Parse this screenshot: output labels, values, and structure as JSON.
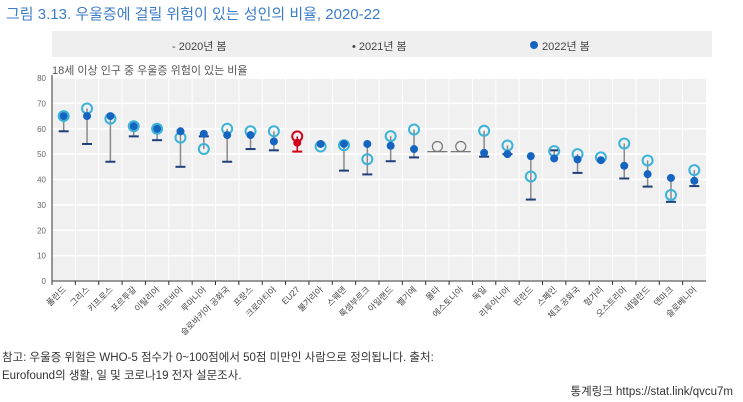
{
  "title": "그림 3.13. 우울증에 걸릴 위험이 있는 성인의 비율, 2020-22",
  "legend": {
    "s2020": "- 2020년 봄",
    "s2021": "• 2021년 봄",
    "s2022": "2022년 봄"
  },
  "note": "참고: 우울증 위험은 WHO-5 점수가 0~100점에서 50점 미만인 사람으로 정의됩니다. 출처: Eurofound의 생활, 일 및 코로나19 전자 설문조사.",
  "link": "통계링크 https://stat.link/qvcu7m",
  "colors": {
    "dot": "#1565c0",
    "circle": "#3bb3d8",
    "dash": "#1f3f7a",
    "stem": "#8a8a8a",
    "highlight": "#d0021b"
  },
  "chart_data": {
    "type": "scatter",
    "title": "그림 3.13. 우울증에 걸릴 위험이 있는 성인의 비율, 2020-22",
    "ylabel": "18세 이상 인구 중 우울증 위험이 있는 비율",
    "ylim": [
      0,
      80
    ],
    "yticks": [
      0,
      10,
      20,
      30,
      40,
      50,
      60,
      70,
      80
    ],
    "grid": true,
    "legend_position": "top",
    "highlight": "EU27",
    "categories": [
      "폴란드",
      "그리스",
      "키프로스",
      "포르투갈",
      "이탈리아",
      "라트비아",
      "루마니아",
      "슬로바키아 공화국",
      "프랑스",
      "크로아티아",
      "EU27",
      "불가리아",
      "스웨덴",
      "룩셈부르크",
      "아일랜드",
      "벨기에",
      "몰타",
      "에스토니아",
      "독일",
      "리투아니아",
      "핀란드",
      "스페인",
      "체코 공화국",
      "헝가리",
      "오스트리아",
      "네덜란드",
      "덴마크",
      "슬로베니아"
    ],
    "series": [
      {
        "name": "2020년 봄",
        "values": [
          59,
          54,
          47,
          57,
          55.5,
          45,
          57,
          47,
          52,
          51.5,
          51,
          null,
          43.5,
          42,
          47.2,
          48.7,
          null,
          null,
          49,
          50,
          32.1,
          51.5,
          42.6,
          null,
          40.4,
          37.2,
          31.2,
          37.4
        ]
      },
      {
        "name": "2021년 봄",
        "values": [
          65,
          68,
          64,
          61,
          60,
          56.5,
          52,
          60,
          59,
          59,
          57,
          53,
          53.5,
          48,
          57.1,
          59.7,
          null,
          null,
          59.2,
          53.4,
          41.2,
          51.2,
          50,
          48.7,
          54.2,
          47.5,
          33.9,
          43.7
        ]
      },
      {
        "name": "2022년 봄",
        "values": [
          65,
          65,
          65,
          61,
          60,
          59,
          58,
          57.5,
          57.5,
          55,
          54.5,
          54,
          54,
          54,
          53.3,
          52,
          null,
          null,
          50.5,
          50,
          49.2,
          48.3,
          47.9,
          47.6,
          45.4,
          42.1,
          40.6,
          39.5
        ]
      }
    ]
  }
}
